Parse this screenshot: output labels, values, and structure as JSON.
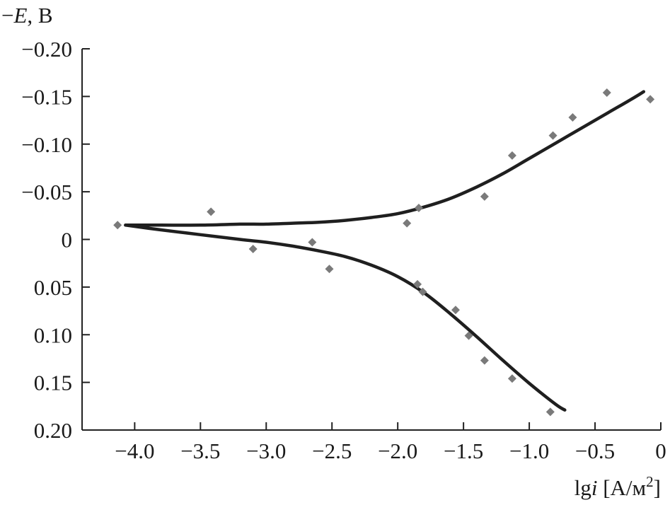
{
  "chart_data": {
    "type": "scatter",
    "ylabel": "−E, В",
    "ylabel_var": "E",
    "ylabel_unit": ", В",
    "ylabel_prefix": "−",
    "xlabel_prefix": "lg",
    "xlabel_var": "i",
    "xlabel_unit": " [А/м",
    "xlabel_sup": "2",
    "xlabel_close": "]",
    "xlim": [
      -4.4,
      0
    ],
    "ylim": [
      -0.2,
      0.2
    ],
    "y_inverted": true,
    "grid": false,
    "x_ticks": [
      {
        "value": -4.0,
        "label": "−4.0"
      },
      {
        "value": -3.5,
        "label": "−3.5"
      },
      {
        "value": -3.0,
        "label": "−3.0"
      },
      {
        "value": -2.5,
        "label": "−2.5"
      },
      {
        "value": -2.0,
        "label": "−2.0"
      },
      {
        "value": -1.5,
        "label": "−1.5"
      },
      {
        "value": -1.0,
        "label": "−1.0"
      },
      {
        "value": -0.5,
        "label": "−0.5"
      },
      {
        "value": 0,
        "label": "0"
      }
    ],
    "y_ticks": [
      {
        "value": -0.2,
        "label": "−0.20"
      },
      {
        "value": -0.15,
        "label": "−0.15"
      },
      {
        "value": -0.1,
        "label": "−0.10"
      },
      {
        "value": -0.05,
        "label": "−0.05"
      },
      {
        "value": 0,
        "label": "0"
      },
      {
        "value": 0.05,
        "label": "0.05"
      },
      {
        "value": 0.1,
        "label": "0.10"
      },
      {
        "value": 0.15,
        "label": "0.15"
      },
      {
        "value": 0.2,
        "label": "0.20"
      }
    ],
    "points": [
      {
        "x": -4.13,
        "y": -0.015
      },
      {
        "x": -3.42,
        "y": -0.029
      },
      {
        "x": -3.1,
        "y": 0.01
      },
      {
        "x": -2.65,
        "y": 0.003
      },
      {
        "x": -2.52,
        "y": 0.031
      },
      {
        "x": -1.93,
        "y": -0.017
      },
      {
        "x": -1.84,
        "y": -0.033
      },
      {
        "x": -1.85,
        "y": 0.047
      },
      {
        "x": -1.81,
        "y": 0.055
      },
      {
        "x": -1.56,
        "y": 0.074
      },
      {
        "x": -1.46,
        "y": 0.101
      },
      {
        "x": -1.34,
        "y": -0.045
      },
      {
        "x": -1.34,
        "y": 0.127
      },
      {
        "x": -1.13,
        "y": -0.088
      },
      {
        "x": -1.13,
        "y": 0.146
      },
      {
        "x": -0.84,
        "y": 0.181
      },
      {
        "x": -0.82,
        "y": -0.109
      },
      {
        "x": -0.67,
        "y": -0.128
      },
      {
        "x": -0.41,
        "y": -0.154
      },
      {
        "x": -0.08,
        "y": -0.147
      }
    ],
    "curves": [
      {
        "x": [
          -4.07,
          -3.8,
          -3.5,
          -3.2,
          -3.0,
          -2.8,
          -2.6,
          -2.4,
          -2.2,
          -2.0,
          -1.8,
          -1.6,
          -1.4,
          -1.2,
          -1.0,
          -0.8,
          -0.6,
          -0.4,
          -0.2,
          -0.13
        ],
        "y": [
          -0.015,
          -0.015,
          -0.015,
          -0.016,
          -0.016,
          -0.017,
          -0.018,
          -0.02,
          -0.023,
          -0.027,
          -0.034,
          -0.043,
          -0.055,
          -0.069,
          -0.085,
          -0.101,
          -0.117,
          -0.133,
          -0.149,
          -0.155
        ]
      },
      {
        "x": [
          -4.07,
          -3.8,
          -3.5,
          -3.2,
          -3.0,
          -2.8,
          -2.6,
          -2.4,
          -2.2,
          -2.0,
          -1.8,
          -1.6,
          -1.4,
          -1.2,
          -1.0,
          -0.8,
          -0.73
        ],
        "y": [
          -0.015,
          -0.01,
          -0.005,
          0.0,
          0.003,
          0.007,
          0.012,
          0.018,
          0.027,
          0.039,
          0.056,
          0.078,
          0.102,
          0.127,
          0.151,
          0.173,
          0.179
        ]
      }
    ]
  }
}
